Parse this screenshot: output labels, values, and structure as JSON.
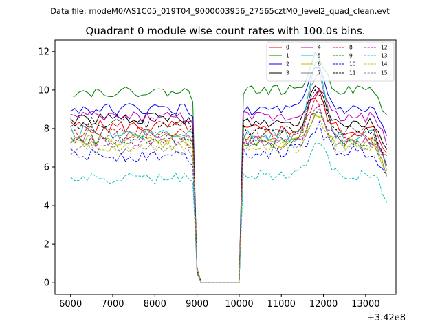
{
  "chart_data": {
    "type": "line",
    "suptitle": "Data file: modeM0/AS1C05_019T04_9000003956_27565cztM0_level2_quad_clean.evt",
    "title": "Quadrant 0 module wise count rates with 100.0s bins.",
    "xlabel": "",
    "ylabel": "",
    "x_offset_label": "+3.42e8",
    "xlim": [
      5630,
      13720
    ],
    "ylim": [
      -0.6,
      12.6
    ],
    "xticks": [
      6000,
      7000,
      8000,
      9000,
      10000,
      11000,
      12000,
      13000
    ],
    "yticks": [
      0,
      2,
      4,
      6,
      8,
      10,
      12
    ],
    "x_start": 6000,
    "x_step": 100,
    "x_count": 76,
    "gap_start_index": 30,
    "gap_end_index": 40,
    "peak_center_x": 11850,
    "legend_columns": 4,
    "legend_location": "upper right",
    "series": [
      {
        "name": "0",
        "color": "#ff0000",
        "dash": "solid",
        "base": 7.9,
        "pre": 8.1,
        "noise": 0.35,
        "peak": 1.9
      },
      {
        "name": "1",
        "color": "#008000",
        "dash": "solid",
        "base": 10.0,
        "pre": 9.9,
        "noise": 0.25,
        "peak": 1.8
      },
      {
        "name": "2",
        "color": "#0000ff",
        "dash": "solid",
        "base": 8.95,
        "pre": 9.0,
        "noise": 0.3,
        "peak": 2.2
      },
      {
        "name": "3",
        "color": "#000000",
        "dash": "solid",
        "base": 8.3,
        "pre": 8.5,
        "noise": 0.3,
        "peak": 2.1
      },
      {
        "name": "4",
        "color": "#c000c0",
        "dash": "solid",
        "base": 8.6,
        "pre": 8.6,
        "noise": 0.3,
        "peak": 1.5
      },
      {
        "name": "5",
        "color": "#00bfbf",
        "dash": "solid",
        "base": 7.6,
        "pre": 7.8,
        "noise": 0.35,
        "peak": 3.8
      },
      {
        "name": "6",
        "color": "#bfbf00",
        "dash": "solid",
        "base": 7.2,
        "pre": 7.4,
        "noise": 0.3,
        "peak": 1.6
      },
      {
        "name": "7",
        "color": "#808080",
        "dash": "solid",
        "base": 7.5,
        "pre": 7.6,
        "noise": 0.35,
        "peak": 3.5
      },
      {
        "name": "8",
        "color": "#ff0000",
        "dash": "dashed",
        "base": 7.7,
        "pre": 7.8,
        "noise": 0.3,
        "peak": 1.8
      },
      {
        "name": "9",
        "color": "#008000",
        "dash": "dashed",
        "base": 7.3,
        "pre": 7.4,
        "noise": 0.3,
        "peak": 1.6
      },
      {
        "name": "10",
        "color": "#0000ff",
        "dash": "dashed",
        "base": 6.8,
        "pre": 6.6,
        "noise": 0.35,
        "peak": 1.3
      },
      {
        "name": "11",
        "color": "#000000",
        "dash": "dashed",
        "base": 7.9,
        "pre": 8.3,
        "noise": 0.3,
        "peak": 2.0
      },
      {
        "name": "12",
        "color": "#c000c0",
        "dash": "dashed",
        "base": 7.4,
        "pre": 7.3,
        "noise": 0.3,
        "peak": 1.7
      },
      {
        "name": "13",
        "color": "#00bfbf",
        "dash": "dashed",
        "base": 5.6,
        "pre": 5.4,
        "noise": 0.3,
        "peak": 1.9
      },
      {
        "name": "14",
        "color": "#bfbf00",
        "dash": "dashed",
        "base": 7.0,
        "pre": 7.1,
        "noise": 0.3,
        "peak": 1.6
      },
      {
        "name": "15",
        "color": "#808080",
        "dash": "dashed",
        "base": 7.1,
        "pre": 6.9,
        "noise": 0.3,
        "peak": 1.7
      }
    ]
  }
}
